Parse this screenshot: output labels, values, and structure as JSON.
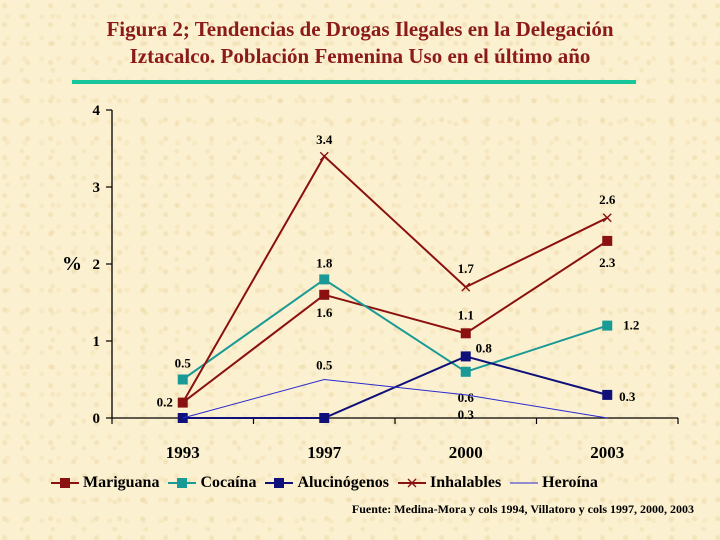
{
  "title_line1": "Figura 2; Tendencias de Drogas Ilegales en  la Delegación",
  "title_line2": "Iztacalco. Población Femenina Uso en el último año",
  "source": "Fuente: Medina-Mora y cols 1994, Villatoro y cols 1997, 2000, 2003",
  "chart_data": {
    "type": "line",
    "title": "Figura 2; Tendencias de Drogas Ilegales en  la Delegación Iztacalco. Población Femenina Uso en el último año",
    "xlabel": "",
    "ylabel": "%",
    "categories": [
      "1993",
      "1997",
      "2000",
      "2003"
    ],
    "ylim": [
      0,
      4
    ],
    "yticks": [
      "0",
      "1",
      "2",
      "3",
      "4"
    ],
    "grid": false,
    "legend_position": "bottom",
    "series": [
      {
        "name": "Mariguana",
        "values": [
          0.2,
          1.6,
          1.1,
          2.3
        ],
        "labels": [
          "0.2",
          "1.6",
          "1.1",
          "2.3"
        ],
        "color": "#8b1010",
        "marker": "square"
      },
      {
        "name": "Cocaína",
        "values": [
          0.5,
          1.8,
          0.6,
          1.2
        ],
        "labels": [
          "0.5",
          "1.8",
          "0.6",
          "1.2"
        ],
        "color": "#1a9a96",
        "marker": "square"
      },
      {
        "name": "Alucinógenos",
        "values": [
          0,
          0,
          0.8,
          0.3
        ],
        "labels": [
          "",
          "",
          "0.8",
          "0.3"
        ],
        "color": "#10107a",
        "marker": "square"
      },
      {
        "name": "Inhalables",
        "values": [
          0.2,
          3.4,
          1.7,
          2.6
        ],
        "labels": [
          "",
          "3.4",
          "1.7",
          "2.6"
        ],
        "color": "#8b1010",
        "marker": "x"
      },
      {
        "name": "Heroína",
        "values": [
          0,
          0.5,
          0.3,
          0
        ],
        "labels": [
          "",
          "0.5",
          "0.3",
          ""
        ],
        "color": "#2a2ad0",
        "marker": "none"
      }
    ]
  }
}
